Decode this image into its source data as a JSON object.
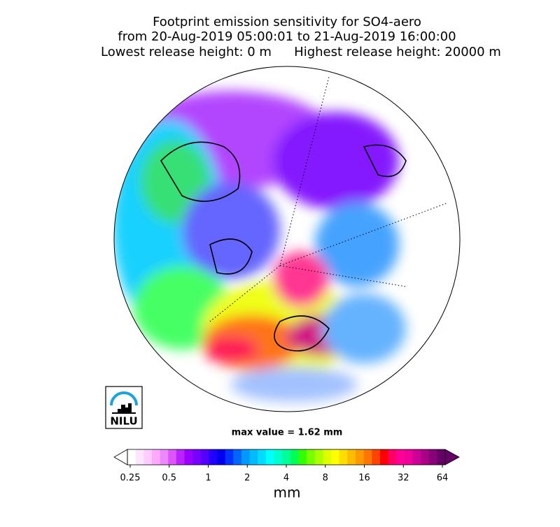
{
  "title_lines": [
    "Footprint emission sensitivity for SO4-aero",
    "from 20-Aug-2019 05:00:01 to 21-Aug-2019 16:00:00",
    "Lowest release height: 0 m",
    "Highest release height: 20000 m"
  ],
  "logo_text": "NILU",
  "max_value_text": "max value = 1.62 mm",
  "colorbar": {
    "label": "mm",
    "log": true,
    "lim": [
      0.25,
      64
    ],
    "ticks": [
      0.25,
      0.5,
      1,
      2,
      4,
      8,
      16,
      32,
      64
    ],
    "colors": [
      "#ffffff",
      "#ffe6ff",
      "#ffccff",
      "#ffaaff",
      "#ee88ff",
      "#dd55ff",
      "#bb22ff",
      "#9900ff",
      "#7700ff",
      "#5500ff",
      "#2200ff",
      "#0000ee",
      "#0033ff",
      "#0066ff",
      "#0099ff",
      "#00bbff",
      "#00ddff",
      "#00ffff",
      "#00ffcc",
      "#00ff99",
      "#00ff55",
      "#33ff00",
      "#77ff00",
      "#aaff00",
      "#ddff00",
      "#ffff00",
      "#ffdd00",
      "#ffbb00",
      "#ff9900",
      "#ff7700",
      "#ff4400",
      "#ff0000",
      "#ff0066",
      "#ff0099",
      "#ee0099",
      "#cc0099",
      "#aa0088",
      "#880077",
      "#660066"
    ],
    "under_color": "#ffffff",
    "over_color": "#660066"
  }
}
